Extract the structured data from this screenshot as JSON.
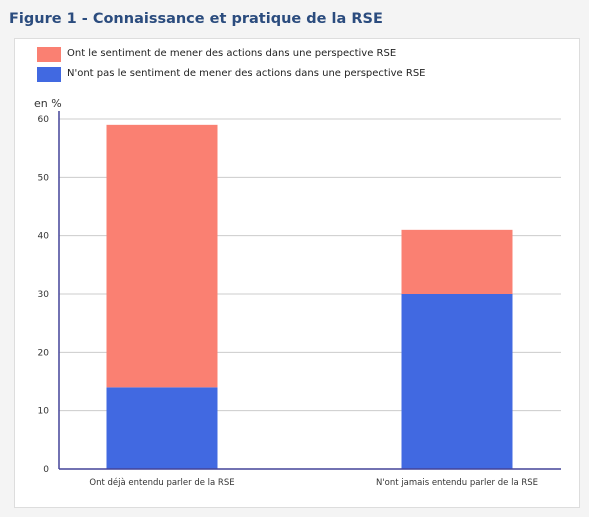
{
  "figure": {
    "title": "Figure 1 - Connaissance et pratique de la RSE"
  },
  "colors": {
    "salmon": "#fa8072",
    "blue": "#4169e1",
    "axis": "#444499",
    "grid": "#cccccc",
    "title": "#2b4c7e"
  },
  "chart_data": {
    "type": "bar",
    "stacked": true,
    "title": "",
    "xlabel": "",
    "ylabel": "en %",
    "ylim": [
      0,
      60
    ],
    "yticks": [
      0,
      10,
      20,
      30,
      40,
      50,
      60
    ],
    "grid": true,
    "legend_position": "top-left",
    "categories": [
      "Ont déjà entendu parler de la RSE",
      "N'ont jamais entendu parler de la RSE"
    ],
    "series": [
      {
        "name": "N'ont pas le sentiment de mener des actions dans une perspective RSE",
        "color": "#4169e1",
        "values": [
          14,
          30
        ]
      },
      {
        "name": "Ont le sentiment de mener des actions dans une perspective RSE",
        "color": "#fa8072",
        "values": [
          45,
          11
        ]
      }
    ]
  }
}
